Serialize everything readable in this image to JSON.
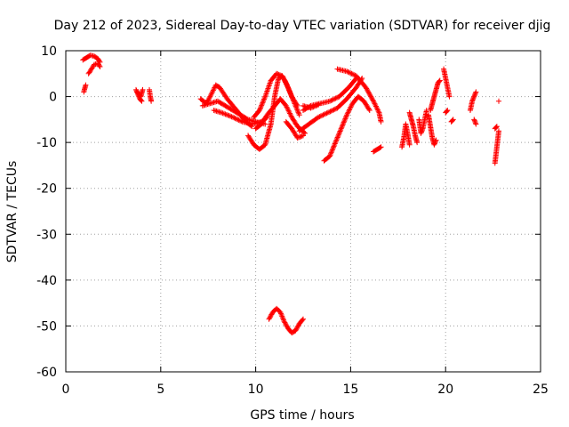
{
  "chart_data": {
    "type": "scatter",
    "title": "Day 212 of 2023, Sidereal Day-to-day VTEC variation (SDTVAR) for receiver djig",
    "xlabel": "GPS time / hours",
    "ylabel": "SDTVAR / TECUs",
    "xlim": [
      0,
      25
    ],
    "ylim": [
      -60,
      10
    ],
    "xticks": [
      0,
      5,
      10,
      15,
      20,
      25
    ],
    "yticks": [
      -60,
      -50,
      -40,
      -30,
      -20,
      -10,
      0,
      10
    ],
    "grid": true,
    "marker": "+",
    "color": "#ff0000",
    "series": [
      {
        "name": "seg01",
        "x": [
          0.95,
          1.0,
          1.05
        ],
        "y": [
          1.0,
          1.8,
          2.5
        ]
      },
      {
        "name": "seg02",
        "x": [
          0.9,
          1.1,
          1.3,
          1.5,
          1.7,
          1.8
        ],
        "y": [
          8.0,
          8.5,
          9.0,
          8.8,
          8.2,
          7.5
        ]
      },
      {
        "name": "seg03",
        "x": [
          1.2,
          1.35,
          1.5,
          1.7,
          1.8
        ],
        "y": [
          5.0,
          6.0,
          7.0,
          7.2,
          6.5
        ]
      },
      {
        "name": "seg04",
        "x": [
          3.7,
          3.8,
          3.9,
          4.0
        ],
        "y": [
          1.5,
          0.5,
          -0.5,
          -1.0
        ]
      },
      {
        "name": "seg05",
        "x": [
          3.75,
          3.95,
          4.05
        ],
        "y": [
          1.0,
          0.0,
          1.5
        ]
      },
      {
        "name": "seg06",
        "x": [
          4.4,
          4.45,
          4.5
        ],
        "y": [
          1.5,
          0.0,
          -1.0
        ]
      },
      {
        "name": "seg07",
        "x": [
          7.1,
          7.4,
          7.6,
          7.9,
          8.1,
          8.5,
          9.0,
          9.5,
          9.8
        ],
        "y": [
          -0.5,
          -1.5,
          0.0,
          2.5,
          2.0,
          -0.5,
          -3.0,
          -5.5,
          -6.5
        ]
      },
      {
        "name": "seg08",
        "x": [
          7.2,
          7.6,
          8.0,
          8.4,
          8.8,
          9.2,
          9.6,
          10.0,
          10.5
        ],
        "y": [
          -2.0,
          -1.5,
          -1.0,
          -2.0,
          -3.0,
          -4.0,
          -5.0,
          -5.5,
          -6.0
        ]
      },
      {
        "name": "seg09",
        "x": [
          7.8,
          8.2,
          8.8,
          9.3,
          9.8,
          10.3,
          10.6
        ],
        "y": [
          -3.0,
          -3.5,
          -4.5,
          -5.5,
          -6.0,
          -5.5,
          -4.5
        ]
      },
      {
        "name": "seg10",
        "x": [
          9.6,
          9.9,
          10.2,
          10.5,
          10.8,
          11.0,
          11.2,
          11.4,
          11.6,
          11.9,
          12.2
        ],
        "y": [
          -8.5,
          -10.5,
          -11.5,
          -10.5,
          -6.0,
          0.0,
          4.0,
          4.5,
          3.0,
          0.0,
          -2.0
        ]
      },
      {
        "name": "seg11",
        "x": [
          9.9,
          10.2,
          10.5,
          10.8,
          11.1,
          11.4,
          11.7,
          12.0,
          12.3
        ],
        "y": [
          -4.5,
          -3.0,
          0.0,
          3.5,
          5.0,
          4.5,
          2.0,
          -1.0,
          -4.0
        ]
      },
      {
        "name": "seg12",
        "x": [
          10.0,
          10.3,
          10.6,
          11.0,
          11.3,
          11.6,
          11.9,
          12.2,
          12.6
        ],
        "y": [
          -7.0,
          -6.0,
          -4.0,
          -2.0,
          -0.5,
          -2.0,
          -4.5,
          -6.5,
          -8.0
        ]
      },
      {
        "name": "seg13",
        "x": [
          11.6,
          11.9,
          12.2,
          12.5
        ],
        "y": [
          -5.5,
          -7.0,
          -9.0,
          -8.5
        ]
      },
      {
        "name": "seg14",
        "x": [
          12.3,
          12.8,
          13.3,
          13.8,
          14.3,
          14.8,
          15.3,
          15.6
        ],
        "y": [
          -7.5,
          -6.0,
          -4.5,
          -3.5,
          -2.5,
          -0.5,
          2.0,
          4.0
        ]
      },
      {
        "name": "seg15",
        "x": [
          12.5,
          12.9,
          13.4,
          13.9,
          14.4,
          14.9,
          15.3
        ],
        "y": [
          -3.0,
          -2.0,
          -1.5,
          -1.0,
          0.0,
          2.0,
          4.0
        ]
      },
      {
        "name": "seg16",
        "x": [
          12.5,
          12.9,
          13.3
        ],
        "y": [
          -2.0,
          -2.5,
          -1.8
        ]
      },
      {
        "name": "seg17",
        "x": [
          13.6,
          13.9,
          14.2,
          14.5,
          14.8,
          15.1,
          15.4,
          15.7,
          16.0
        ],
        "y": [
          -14.0,
          -13.0,
          -10.0,
          -7.0,
          -4.0,
          -1.5,
          0.0,
          -1.0,
          -3.0
        ]
      },
      {
        "name": "seg18",
        "x": [
          14.3,
          14.8,
          15.3,
          15.8,
          16.2,
          16.5,
          16.6
        ],
        "y": [
          6.0,
          5.5,
          4.5,
          2.0,
          -1.0,
          -3.5,
          -5.5
        ]
      },
      {
        "name": "seg19",
        "x": [
          16.2,
          16.4,
          16.6
        ],
        "y": [
          -12.0,
          -11.5,
          -11.0
        ]
      },
      {
        "name": "seg20",
        "x": [
          17.7,
          17.8,
          17.9,
          18.0,
          18.1
        ],
        "y": [
          -11.0,
          -9.0,
          -6.0,
          -8.0,
          -10.5
        ]
      },
      {
        "name": "seg21",
        "x": [
          18.1,
          18.2,
          18.3,
          18.4,
          18.5
        ],
        "y": [
          -3.5,
          -5.0,
          -6.5,
          -8.5,
          -10.0
        ]
      },
      {
        "name": "seg22",
        "x": [
          18.6,
          18.7,
          18.8,
          18.9,
          19.0
        ],
        "y": [
          -5.0,
          -8.0,
          -7.0,
          -5.0,
          -3.0
        ]
      },
      {
        "name": "seg23",
        "x": [
          19.1,
          19.2,
          19.3,
          19.4,
          19.5
        ],
        "y": [
          -4.0,
          -6.5,
          -9.0,
          -10.5,
          -9.5
        ]
      },
      {
        "name": "seg24",
        "x": [
          19.2,
          19.3,
          19.4,
          19.5,
          19.6,
          19.7
        ],
        "y": [
          -3.0,
          -1.5,
          0.0,
          1.5,
          3.0,
          3.5
        ]
      },
      {
        "name": "seg25",
        "x": [
          19.9,
          20.0,
          20.1,
          20.2
        ],
        "y": [
          6.0,
          4.0,
          2.0,
          0.0
        ]
      },
      {
        "name": "seg26",
        "x": [
          20.0,
          20.1
        ],
        "y": [
          -3.5,
          -3.0
        ]
      },
      {
        "name": "seg27",
        "x": [
          20.3,
          20.4
        ],
        "y": [
          -5.5,
          -5.0
        ]
      },
      {
        "name": "seg28",
        "x": [
          21.3,
          21.4,
          21.5,
          21.6
        ],
        "y": [
          -3.0,
          -1.0,
          0.0,
          1.0
        ]
      },
      {
        "name": "seg29",
        "x": [
          21.5,
          21.6
        ],
        "y": [
          -5.0,
          -6.0
        ]
      },
      {
        "name": "seg30",
        "x": [
          22.6,
          22.7,
          22.8
        ],
        "y": [
          -14.5,
          -11.0,
          -7.5
        ]
      },
      {
        "name": "seg31",
        "x": [
          22.6,
          22.7
        ],
        "y": [
          -7.0,
          -6.5
        ]
      },
      {
        "name": "seg32",
        "x": [
          22.8
        ],
        "y": [
          -1.0
        ]
      },
      {
        "name": "seg33",
        "x": [
          10.7,
          10.9,
          11.1,
          11.3,
          11.5,
          11.7,
          11.9,
          12.1,
          12.3,
          12.5
        ],
        "y": [
          -48.5,
          -47.0,
          -46.2,
          -47.0,
          -49.0,
          -50.5,
          -51.5,
          -51.0,
          -49.5,
          -48.5
        ]
      }
    ]
  }
}
